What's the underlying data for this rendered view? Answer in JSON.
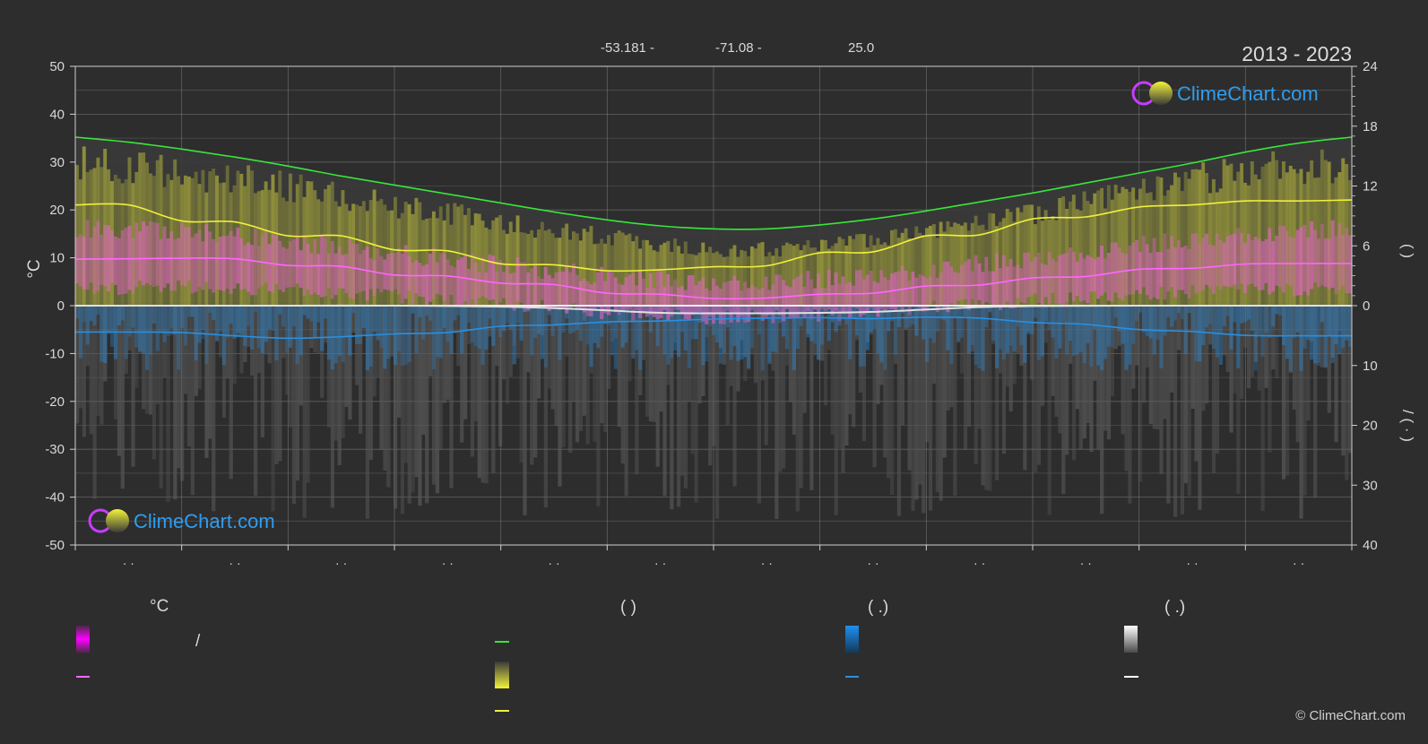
{
  "header": {
    "latitude": "-53.181 -",
    "longitude": "-71.08 -",
    "elevation": "25.0",
    "years": "2013 - 2023"
  },
  "watermark": {
    "text": "ClimeChart.com"
  },
  "copyright": "© ClimeChart.com",
  "colors": {
    "background": "#2d2d2d",
    "daylight": "#39e53a",
    "sunshine": "#f0f03c",
    "temperature_mean": "#ff66ff",
    "precipitation": "#2a8fe0",
    "snow": "#e0e0e0",
    "grid": "#8c8c8c",
    "brand": "#2f9df0"
  },
  "chart_data": {
    "type": "line",
    "x_months": [
      "· ·",
      "· ·",
      "· ·",
      "· ·",
      "· ·",
      "· ·",
      "· ·",
      "· ·",
      "· ·",
      "· ·",
      "· ·",
      "· ·"
    ],
    "ylabel_left": "°C",
    "ylim_left": [
      -50,
      50
    ],
    "yticks_left": [
      50,
      40,
      30,
      20,
      10,
      0,
      -10,
      -20,
      -30,
      -40,
      -50
    ],
    "ylabel_right_top": "(   )",
    "yticks_right_top": [
      24,
      18,
      12,
      6,
      0
    ],
    "ylim_right_top": [
      0,
      24
    ],
    "ylabel_right_bottom": "/    (  ·  )",
    "yticks_right_bottom": [
      0,
      10,
      20,
      30,
      40
    ],
    "ylim_right_bottom": [
      0,
      40
    ],
    "grid": true,
    "series": [
      {
        "key": "daylight",
        "axis": "right_top_hours",
        "x": [
          0,
          0.5,
          1,
          1.5,
          2,
          2.5,
          3,
          3.5,
          4,
          4.5,
          5,
          5.5,
          6,
          6.5,
          7,
          7.5,
          8,
          8.5,
          9,
          9.5,
          10,
          10.5,
          11,
          11.5,
          12
        ],
        "values": [
          16.9,
          16.4,
          15.7,
          14.9,
          14.0,
          13.0,
          12.1,
          11.2,
          10.3,
          9.4,
          8.6,
          8.0,
          7.7,
          7.7,
          8.1,
          8.7,
          9.5,
          10.4,
          11.3,
          12.3,
          13.3,
          14.3,
          15.4,
          16.3,
          16.9
        ]
      },
      {
        "key": "sunshine",
        "axis": "right_top_hours",
        "x": [
          0,
          0.5,
          1,
          1.5,
          2,
          2.5,
          3,
          3.5,
          4,
          4.5,
          5,
          5.5,
          6,
          6.5,
          7,
          7.5,
          8,
          8.5,
          9,
          9.5,
          10,
          10.5,
          11,
          11.5,
          12
        ],
        "values": [
          10.1,
          10.1,
          8.5,
          8.4,
          7.0,
          7.0,
          5.6,
          5.5,
          4.2,
          4.1,
          3.5,
          3.6,
          3.9,
          4.0,
          5.3,
          5.4,
          7.0,
          7.1,
          8.7,
          8.9,
          9.9,
          10.1,
          10.5,
          10.5,
          10.6
        ]
      },
      {
        "key": "temperature_mean",
        "axis": "left_celsius",
        "x": [
          0,
          0.5,
          1,
          1.5,
          2,
          2.5,
          3,
          3.5,
          4,
          4.5,
          5,
          5.5,
          6,
          6.5,
          7,
          7.5,
          8,
          8.5,
          9,
          9.5,
          10,
          10.5,
          11,
          11.5,
          12
        ],
        "values": [
          9.7,
          9.8,
          9.9,
          9.8,
          8.4,
          8.2,
          6.4,
          6.2,
          4.7,
          4.4,
          2.6,
          2.4,
          1.5,
          1.6,
          2.4,
          2.6,
          4.1,
          4.3,
          5.8,
          6.1,
          7.6,
          7.8,
          8.7,
          8.8,
          8.8
        ]
      },
      {
        "key": "snow",
        "axis": "left_celsius",
        "x": [
          0,
          1,
          2,
          3,
          4,
          4.5,
          5,
          5.5,
          6,
          6.5,
          7,
          7.5,
          8,
          8.5,
          9,
          10,
          11,
          12
        ],
        "values": [
          0,
          0,
          0,
          0,
          -0.2,
          -0.5,
          -1.0,
          -1.5,
          -1.6,
          -1.6,
          -1.5,
          -1.3,
          -0.8,
          -0.3,
          -0.1,
          0,
          0,
          0
        ]
      },
      {
        "key": "precipitation",
        "axis": "left_celsius",
        "x": [
          0,
          0.5,
          1,
          1.5,
          2,
          2.5,
          3,
          3.5,
          4,
          4.5,
          5,
          5.5,
          6,
          6.5,
          7,
          7.5,
          8,
          8.5,
          9,
          9.5,
          10,
          10.5,
          11,
          11.5,
          12
        ],
        "values": [
          -5.5,
          -5.5,
          -5.6,
          -6.3,
          -6.8,
          -6.5,
          -5.9,
          -5.6,
          -4.3,
          -4.0,
          -3.4,
          -3.2,
          -2.8,
          -2.6,
          -2.5,
          -2.7,
          -2.4,
          -2.6,
          -3.5,
          -3.9,
          -5.0,
          -5.4,
          -6.2,
          -6.3,
          -6.3
        ]
      }
    ],
    "bands": [
      {
        "key": "sunshine_band",
        "axis": "right_top_hours",
        "low": 0,
        "x": [
          0,
          1,
          2,
          3,
          4,
          5,
          6,
          7,
          8,
          9,
          10,
          11,
          12
        ],
        "high": [
          15.5,
          14.6,
          12.8,
          11.0,
          9.0,
          7.4,
          6.0,
          6.3,
          7.8,
          10.0,
          12.7,
          14.6,
          15.2
        ]
      },
      {
        "key": "temperature_band",
        "axis": "left_celsius",
        "x": [
          0,
          1,
          2,
          3,
          4,
          5,
          6,
          7,
          8,
          9,
          10,
          11,
          12
        ],
        "high": [
          16,
          15.5,
          13.5,
          11,
          8.5,
          6,
          5,
          5.5,
          7.5,
          10,
          12.5,
          15,
          16
        ],
        "low": [
          3.5,
          4.0,
          3.5,
          2.0,
          0.5,
          -1.5,
          -2.5,
          -2.0,
          -0.5,
          1.0,
          2.5,
          3.5,
          3.5
        ]
      }
    ],
    "legend": {
      "groups": [
        {
          "title": "°C",
          "items": [
            {
              "key": "temperature_band",
              "label": "/"
            },
            {
              "key": "temperature_mean",
              "label": ""
            }
          ]
        },
        {
          "title": "(          )",
          "items": [
            {
              "key": "daylight",
              "label": ""
            },
            {
              "key": "sunshine_band",
              "label": ""
            },
            {
              "key": "sunshine",
              "label": ""
            }
          ]
        },
        {
          "title": "(   .)",
          "items": [
            {
              "key": "precipitation_band",
              "label": ""
            },
            {
              "key": "precipitation",
              "label": ""
            }
          ]
        },
        {
          "title": "(   .)",
          "items": [
            {
              "key": "snow_band",
              "label": ""
            },
            {
              "key": "snow",
              "label": ""
            }
          ]
        }
      ]
    }
  }
}
